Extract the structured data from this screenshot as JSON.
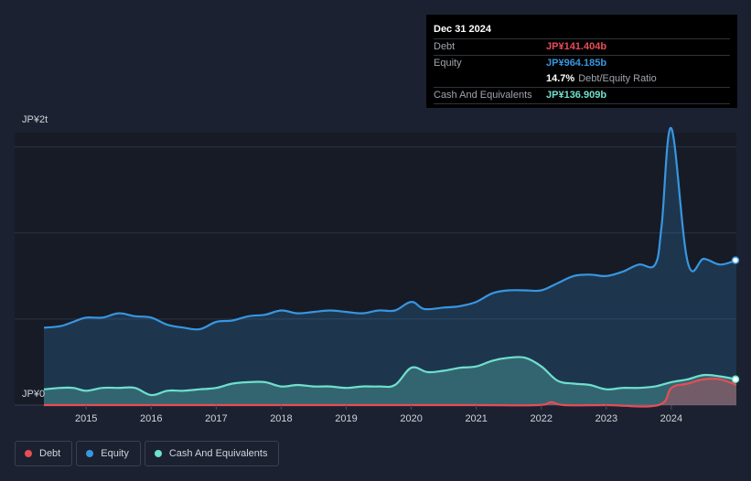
{
  "tooltip": {
    "date": "Dec 31 2024",
    "debt_label": "Debt",
    "debt_value": "JP¥141.404b",
    "equity_label": "Equity",
    "equity_value": "JP¥964.185b",
    "ratio_value": "14.7%",
    "ratio_label": "Debt/Equity Ratio",
    "cash_label": "Cash And Equivalents",
    "cash_value": "JP¥136.909b"
  },
  "axis": {
    "y_top_label": "JP¥2t",
    "y_bottom_label": "JP¥0"
  },
  "legend": [
    {
      "label": "Debt",
      "color": "#e84d56"
    },
    {
      "label": "Equity",
      "color": "#3896e0"
    },
    {
      "label": "Cash And Equivalents",
      "color": "#6fe0cc"
    }
  ],
  "chart_data": {
    "type": "area",
    "x_unit": "year",
    "xlim": [
      2014.35,
      2025.0
    ],
    "ylim": [
      0,
      1.9
    ],
    "y_unit": "JP¥ trillion",
    "x_ticks": [
      2015,
      2016,
      2017,
      2018,
      2019,
      2020,
      2021,
      2022,
      2023,
      2024
    ],
    "x_tick_labels": [
      "2015",
      "2016",
      "2017",
      "2018",
      "2019",
      "2020",
      "2021",
      "2022",
      "2023",
      "2024"
    ],
    "grid": true,
    "series": [
      {
        "name": "Equity",
        "color": "#3896e0",
        "points": [
          [
            2014.35,
            0.54
          ],
          [
            2014.6,
            0.55
          ],
          [
            2014.8,
            0.58
          ],
          [
            2015.0,
            0.61
          ],
          [
            2015.25,
            0.61
          ],
          [
            2015.5,
            0.64
          ],
          [
            2015.75,
            0.62
          ],
          [
            2016.0,
            0.61
          ],
          [
            2016.25,
            0.56
          ],
          [
            2016.5,
            0.54
          ],
          [
            2016.75,
            0.53
          ],
          [
            2017.0,
            0.58
          ],
          [
            2017.25,
            0.59
          ],
          [
            2017.5,
            0.62
          ],
          [
            2017.75,
            0.63
          ],
          [
            2018.0,
            0.66
          ],
          [
            2018.25,
            0.64
          ],
          [
            2018.5,
            0.65
          ],
          [
            2018.75,
            0.66
          ],
          [
            2019.0,
            0.65
          ],
          [
            2019.25,
            0.64
          ],
          [
            2019.5,
            0.66
          ],
          [
            2019.75,
            0.66
          ],
          [
            2020.0,
            0.72
          ],
          [
            2020.2,
            0.67
          ],
          [
            2020.5,
            0.68
          ],
          [
            2020.75,
            0.69
          ],
          [
            2021.0,
            0.72
          ],
          [
            2021.25,
            0.78
          ],
          [
            2021.5,
            0.8
          ],
          [
            2021.75,
            0.8
          ],
          [
            2022.0,
            0.8
          ],
          [
            2022.25,
            0.85
          ],
          [
            2022.5,
            0.9
          ],
          [
            2022.75,
            0.91
          ],
          [
            2023.0,
            0.9
          ],
          [
            2023.25,
            0.93
          ],
          [
            2023.5,
            0.98
          ],
          [
            2023.75,
            0.98
          ],
          [
            2023.85,
            1.25
          ],
          [
            2024.0,
            1.93
          ],
          [
            2024.25,
            1.0
          ],
          [
            2024.5,
            1.02
          ],
          [
            2024.75,
            0.98
          ],
          [
            2025.0,
            1.01
          ]
        ]
      },
      {
        "name": "Cash And Equivalents",
        "color": "#6fe0cc",
        "points": [
          [
            2014.35,
            0.11
          ],
          [
            2014.6,
            0.12
          ],
          [
            2014.8,
            0.12
          ],
          [
            2015.0,
            0.1
          ],
          [
            2015.25,
            0.12
          ],
          [
            2015.5,
            0.12
          ],
          [
            2015.75,
            0.12
          ],
          [
            2016.0,
            0.07
          ],
          [
            2016.25,
            0.1
          ],
          [
            2016.5,
            0.1
          ],
          [
            2016.75,
            0.11
          ],
          [
            2017.0,
            0.12
          ],
          [
            2017.25,
            0.15
          ],
          [
            2017.5,
            0.16
          ],
          [
            2017.75,
            0.16
          ],
          [
            2018.0,
            0.13
          ],
          [
            2018.25,
            0.14
          ],
          [
            2018.5,
            0.13
          ],
          [
            2018.75,
            0.13
          ],
          [
            2019.0,
            0.12
          ],
          [
            2019.25,
            0.13
          ],
          [
            2019.5,
            0.13
          ],
          [
            2019.75,
            0.14
          ],
          [
            2020.0,
            0.26
          ],
          [
            2020.25,
            0.23
          ],
          [
            2020.5,
            0.24
          ],
          [
            2020.75,
            0.26
          ],
          [
            2021.0,
            0.27
          ],
          [
            2021.25,
            0.31
          ],
          [
            2021.5,
            0.33
          ],
          [
            2021.75,
            0.33
          ],
          [
            2022.0,
            0.27
          ],
          [
            2022.25,
            0.17
          ],
          [
            2022.5,
            0.15
          ],
          [
            2022.75,
            0.14
          ],
          [
            2023.0,
            0.11
          ],
          [
            2023.25,
            0.12
          ],
          [
            2023.5,
            0.12
          ],
          [
            2023.75,
            0.13
          ],
          [
            2024.0,
            0.16
          ],
          [
            2024.25,
            0.18
          ],
          [
            2024.5,
            0.21
          ],
          [
            2024.75,
            0.2
          ],
          [
            2025.0,
            0.18
          ]
        ]
      },
      {
        "name": "Debt",
        "color": "#e84d56",
        "points": [
          [
            2014.35,
            0.0
          ],
          [
            2015.0,
            0.0
          ],
          [
            2016.0,
            0.0
          ],
          [
            2017.0,
            0.0
          ],
          [
            2018.0,
            0.0
          ],
          [
            2019.0,
            0.0
          ],
          [
            2020.0,
            0.0
          ],
          [
            2021.0,
            0.0
          ],
          [
            2021.95,
            0.0
          ],
          [
            2022.15,
            0.02
          ],
          [
            2022.35,
            0.0
          ],
          [
            2023.0,
            0.0
          ],
          [
            2023.8,
            0.0
          ],
          [
            2024.0,
            0.12
          ],
          [
            2024.25,
            0.15
          ],
          [
            2024.5,
            0.18
          ],
          [
            2024.75,
            0.18
          ],
          [
            2025.0,
            0.14
          ]
        ]
      }
    ]
  }
}
